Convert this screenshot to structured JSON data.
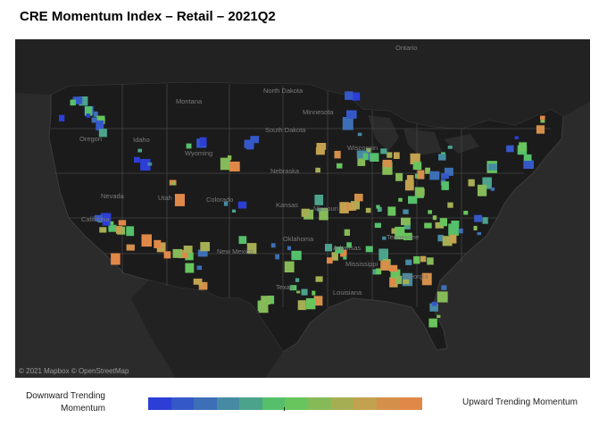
{
  "title": "CRE Momentum Index – Retail – 2021Q2",
  "map": {
    "attribution": "© 2021 Mapbox © OpenStreetMap",
    "place_labels": [
      "Ontario",
      "North Dakota",
      "Montana",
      "Oregon",
      "Idaho",
      "Wyoming",
      "South Dakota",
      "Minnesota",
      "Nebraska",
      "Nevada",
      "Utah",
      "Colorado",
      "Kansas",
      "California",
      "New Mexico",
      "Oklahoma",
      "Texas",
      "Arkansas",
      "Mississippi",
      "Louisiana",
      "Georgia",
      "Tennessee",
      "Missouri",
      "Wisconsin"
    ],
    "colors": {
      "background": "#2b2b2b",
      "land": "#1b1b1b",
      "border": "#4a4a4a",
      "label": "#7a7a7a"
    }
  },
  "legend": {
    "left_label": "Downward Trending Momentum",
    "right_label": "Upward Trending Momentum",
    "colors": [
      "#2c3ed6",
      "#3558c9",
      "#3d6fb6",
      "#468aa3",
      "#4ca38c",
      "#56bf6b",
      "#68c45c",
      "#86ba58",
      "#a6ae53",
      "#c2a14f",
      "#d4904b",
      "#e08848"
    ]
  }
}
